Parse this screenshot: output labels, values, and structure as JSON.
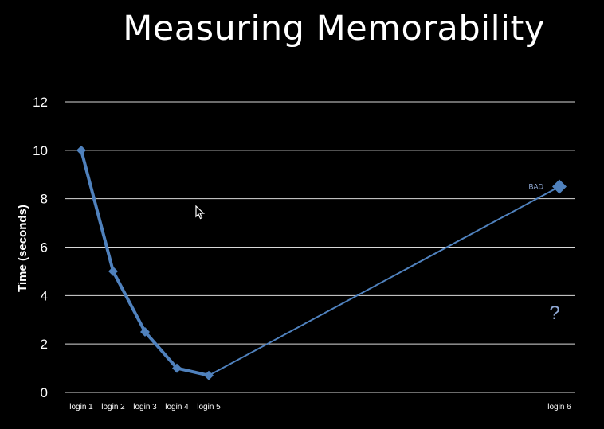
{
  "slide": {
    "title": "Measuring Memorability"
  },
  "chart_data": {
    "type": "line",
    "title": "",
    "xlabel": "",
    "ylabel": "Time (seconds)",
    "ylim": [
      0,
      12
    ],
    "yticks": [
      0,
      2,
      4,
      6,
      8,
      10,
      12
    ],
    "grid": true,
    "legend": "none",
    "categories": [
      "login 1",
      "login 2",
      "login 3",
      "login 4",
      "login 5",
      "login 6"
    ],
    "category_position": [
      1,
      2,
      3,
      4,
      5,
      16
    ],
    "series": [
      {
        "values": [
          10,
          5,
          2.5,
          1,
          0.7,
          8.5
        ],
        "color": "#4f81bd"
      }
    ],
    "annotations": [
      {
        "text": "BAD",
        "category": "login 6"
      },
      {
        "text": "?",
        "category": "login 6"
      }
    ]
  },
  "colors": {
    "background": "#000000",
    "grid": "#d9d9d9",
    "series": "#4f81bd",
    "text": "#ffffff",
    "annotation": "#8fa8d4"
  }
}
